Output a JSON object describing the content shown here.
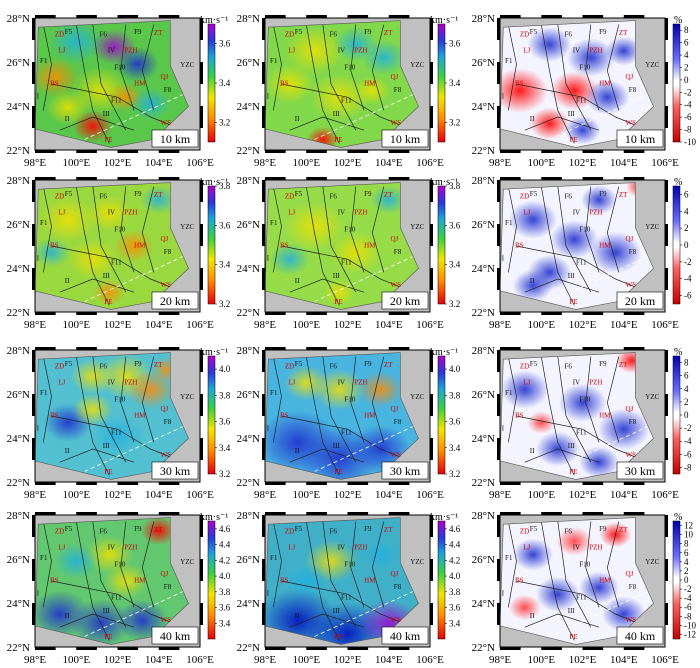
{
  "chart_data": {
    "type": "heatmap",
    "title": "",
    "depth_unit": "km",
    "velocity_unit_label": "km·s⁻¹",
    "anomaly_unit_label": "%",
    "x_ticks": [
      "98°E",
      "100°E",
      "102°E",
      "104°E",
      "106°E"
    ],
    "y_ticks": [
      "22°N",
      "24°N",
      "26°N",
      "28°N"
    ],
    "xlim": [
      98,
      106
    ],
    "ylim": [
      22,
      28
    ],
    "columns": [
      "velocity-model-1",
      "velocity-model-2",
      "velocity-anomaly"
    ],
    "rows": [
      {
        "depth_label": "10 km",
        "vel_ticks": [
          "3.2",
          "3.4",
          "3.6"
        ],
        "vel_range": [
          3.1,
          3.7
        ],
        "anom_ticks": [
          "8",
          "6",
          "4",
          "2",
          "0",
          "-2",
          "-4",
          "-6",
          "-8",
          "-10"
        ],
        "anom_range": [
          -10,
          9
        ]
      },
      {
        "depth_label": "20 km",
        "vel_ticks": [
          "3.2",
          "3.4",
          "3.6",
          "3.8"
        ],
        "vel_range": [
          3.2,
          3.8
        ],
        "anom_ticks": [
          "6",
          "4",
          "2",
          "0",
          "-2",
          "-4",
          "-6"
        ],
        "anom_range": [
          -7,
          7
        ]
      },
      {
        "depth_label": "30 km",
        "vel_ticks": [
          "3.2",
          "3.4",
          "3.6",
          "3.8",
          "4.0"
        ],
        "vel_range": [
          3.2,
          4.1
        ],
        "anom_ticks": [
          "8",
          "6",
          "4",
          "2",
          "0",
          "-2",
          "-4",
          "-6",
          "-8"
        ],
        "anom_range": [
          -9,
          9
        ]
      },
      {
        "depth_label": "40 km",
        "vel_ticks": [
          "3.4",
          "3.6",
          "3.8",
          "4.0",
          "4.2",
          "4.4",
          "4.6"
        ],
        "vel_range": [
          3.2,
          4.7
        ],
        "anom_ticks": [
          "12",
          "10",
          "8",
          "6",
          "4",
          "2",
          "0",
          "-2",
          "-4",
          "-6",
          "-8",
          "-10",
          "-12"
        ],
        "anom_range": [
          -13,
          13
        ]
      }
    ],
    "map_labels": [
      "ZD",
      "LJ",
      "PZH",
      "ZT",
      "BS",
      "HM",
      "QJ",
      "PE",
      "WS",
      "YZC",
      "F1",
      "F5",
      "F6",
      "F9",
      "F10",
      "F11",
      "F8",
      "I",
      "II",
      "III",
      "IV"
    ]
  }
}
